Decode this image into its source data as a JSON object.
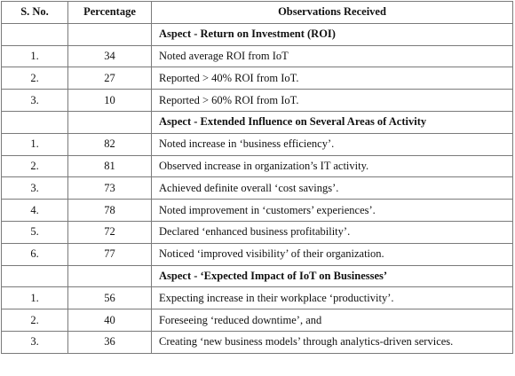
{
  "headers": {
    "sno": "S. No.",
    "percentage": "Percentage",
    "observations": "Observations Received"
  },
  "sections": [
    {
      "title": "Aspect - Return on Investment (ROI)",
      "rows": [
        {
          "sno": "1.",
          "pct": "34",
          "obs": "Noted average ROI from IoT"
        },
        {
          "sno": "2.",
          "pct": "27",
          "obs": "Reported > 40% ROI from IoT."
        },
        {
          "sno": "3.",
          "pct": "10",
          "obs": "Reported > 60% ROI from IoT."
        }
      ]
    },
    {
      "title": "Aspect - Extended Influence on Several Areas of Activity",
      "rows": [
        {
          "sno": "1.",
          "pct": "82",
          "obs": "Noted increase in ‘business efficiency’."
        },
        {
          "sno": "2.",
          "pct": "81",
          "obs": "Observed increase in organization’s IT activity."
        },
        {
          "sno": "3.",
          "pct": "73",
          "obs": "Achieved definite overall ‘cost savings’."
        },
        {
          "sno": "4.",
          "pct": "78",
          "obs": "Noted improvement in ‘customers’ experiences’."
        },
        {
          "sno": "5.",
          "pct": "72",
          "obs": "Declared ‘enhanced business profitability’."
        },
        {
          "sno": "6.",
          "pct": "77",
          "obs": "Noticed ‘improved visibility’ of their organization."
        }
      ]
    },
    {
      "title": "Aspect - ‘Expected Impact of IoT on Businesses’",
      "rows": [
        {
          "sno": "1.",
          "pct": "56",
          "obs": "Expecting increase in their workplace ‘productivity’."
        },
        {
          "sno": "2.",
          "pct": "40",
          "obs": "Foreseeing ‘reduced downtime’, and"
        },
        {
          "sno": "3.",
          "pct": "36",
          "obs": "Creating ‘new business models’ through analytics-driven services."
        }
      ]
    }
  ]
}
